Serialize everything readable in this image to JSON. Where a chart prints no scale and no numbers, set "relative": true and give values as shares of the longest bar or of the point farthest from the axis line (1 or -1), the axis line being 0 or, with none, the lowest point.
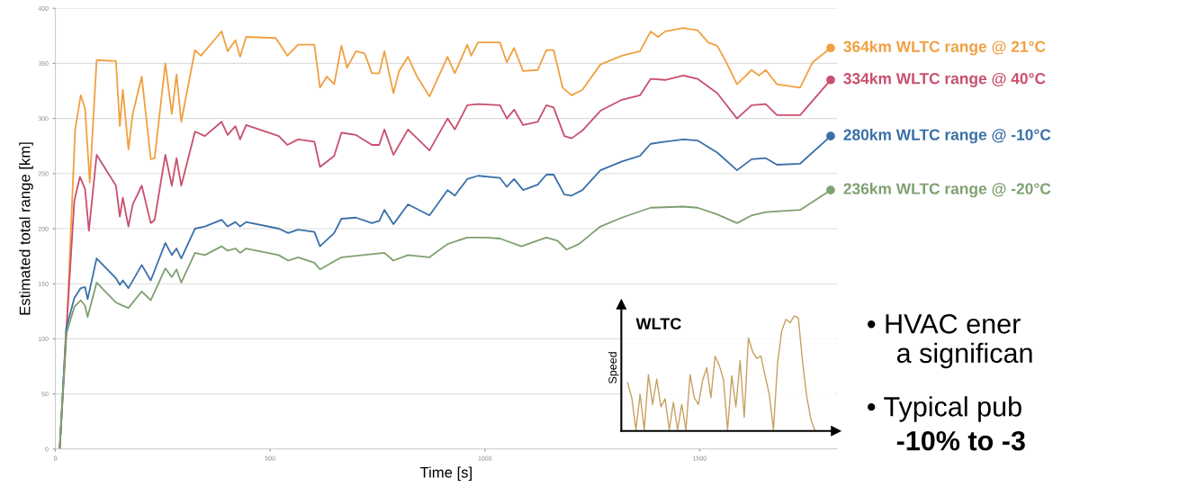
{
  "chart_data": [
    {
      "type": "line",
      "xlabel": "Time [s]",
      "ylabel": "Estimated total range [km]",
      "xlim": [
        0,
        1820
      ],
      "xticks": [
        0,
        500,
        1000,
        1500
      ],
      "ylim": [
        0,
        400
      ],
      "yticks": [
        0,
        50,
        100,
        150,
        200,
        250,
        300,
        350,
        400
      ],
      "grid": "y",
      "marker": "none",
      "line_style": "solid",
      "annotations": [
        "• HVAC ener",
        "a significan",
        "• Typical pub",
        "-10% to -3"
      ],
      "series": [
        {
          "name": "364km WLTC range @ 21°C",
          "color": "#f0a040",
          "x": [
            10,
            25,
            46,
            59,
            69,
            80,
            96,
            141,
            150,
            157,
            170,
            180,
            201,
            222,
            231,
            256,
            271,
            282,
            293,
            325,
            339,
            376,
            387,
            401,
            419,
            430,
            444,
            513,
            540,
            565,
            603,
            616,
            632,
            649,
            666,
            679,
            700,
            720,
            737,
            754,
            766,
            787,
            800,
            821,
            842,
            871,
            913,
            930,
            959,
            968,
            984,
            1035,
            1051,
            1068,
            1089,
            1123,
            1143,
            1160,
            1181,
            1202,
            1227,
            1269,
            1319,
            1361,
            1386,
            1403,
            1420,
            1462,
            1495,
            1520,
            1541,
            1562,
            1587,
            1621,
            1638,
            1654,
            1680,
            1734,
            1763,
            1805
          ],
          "values": [
            0,
            98,
            290,
            321,
            309,
            242,
            353,
            352,
            293,
            326,
            272,
            304,
            338,
            263,
            264,
            350,
            304,
            340,
            297,
            362,
            357,
            374,
            379,
            361,
            371,
            356,
            374,
            373,
            357,
            367,
            367,
            328,
            338,
            331,
            366,
            346,
            361,
            359,
            341,
            341,
            361,
            323,
            343,
            356,
            338,
            320,
            356,
            341,
            367,
            357,
            369,
            369,
            351,
            364,
            343,
            344,
            362,
            362,
            328,
            321,
            326,
            349,
            357,
            361,
            379,
            374,
            379,
            382,
            380,
            369,
            366,
            351,
            331,
            344,
            339,
            344,
            331,
            328,
            351,
            364
          ]
        },
        {
          "name": "334km WLTC range @ 40°C",
          "color": "#c8506e",
          "x": [
            10,
            25,
            44,
            57,
            69,
            78,
            96,
            141,
            150,
            157,
            170,
            180,
            201,
            222,
            231,
            256,
            271,
            282,
            293,
            325,
            348,
            387,
            401,
            419,
            430,
            444,
            520,
            540,
            565,
            603,
            616,
            649,
            666,
            700,
            737,
            754,
            766,
            787,
            821,
            871,
            913,
            930,
            959,
            984,
            1035,
            1051,
            1068,
            1089,
            1123,
            1143,
            1160,
            1185,
            1202,
            1227,
            1269,
            1319,
            1361,
            1386,
            1420,
            1462,
            1495,
            1541,
            1587,
            1621,
            1654,
            1680,
            1734,
            1805
          ],
          "values": [
            0,
            104,
            225,
            247,
            236,
            198,
            267,
            239,
            211,
            228,
            202,
            222,
            239,
            205,
            208,
            267,
            239,
            264,
            239,
            288,
            284,
            297,
            285,
            293,
            281,
            294,
            284,
            276,
            281,
            279,
            256,
            266,
            287,
            285,
            276,
            276,
            290,
            267,
            290,
            271,
            300,
            290,
            312,
            313,
            312,
            300,
            308,
            294,
            297,
            312,
            310,
            284,
            282,
            289,
            307,
            317,
            321,
            336,
            335,
            339,
            336,
            323,
            300,
            312,
            313,
            303,
            303,
            335
          ]
        },
        {
          "name": "280km WLTC range @ -10°C",
          "color": "#3a70a8",
          "x": [
            10,
            25,
            44,
            59,
            69,
            75,
            96,
            141,
            150,
            157,
            170,
            201,
            222,
            256,
            271,
            282,
            293,
            325,
            348,
            387,
            401,
            419,
            430,
            444,
            520,
            542,
            565,
            603,
            616,
            649,
            666,
            700,
            737,
            754,
            766,
            787,
            821,
            871,
            913,
            930,
            959,
            984,
            1035,
            1051,
            1068,
            1089,
            1123,
            1143,
            1160,
            1185,
            1202,
            1227,
            1269,
            1319,
            1361,
            1386,
            1420,
            1462,
            1495,
            1541,
            1587,
            1621,
            1654,
            1680,
            1734,
            1805
          ],
          "values": [
            0,
            109,
            137,
            146,
            147,
            136,
            173,
            155,
            149,
            153,
            146,
            167,
            153,
            187,
            176,
            182,
            173,
            200,
            202,
            208,
            202,
            206,
            202,
            206,
            200,
            196,
            199,
            197,
            184,
            196,
            209,
            210,
            205,
            207,
            217,
            204,
            222,
            212,
            235,
            230,
            245,
            248,
            246,
            238,
            245,
            235,
            240,
            249,
            249,
            231,
            230,
            235,
            253,
            261,
            266,
            277,
            279,
            281,
            280,
            269,
            253,
            263,
            264,
            258,
            259,
            284
          ]
        },
        {
          "name": "236km WLTC range @ -20°C",
          "color": "#7fa070",
          "x": [
            10,
            25,
            44,
            59,
            69,
            75,
            96,
            141,
            157,
            170,
            201,
            222,
            256,
            271,
            282,
            293,
            325,
            348,
            387,
            401,
            419,
            430,
            444,
            520,
            542,
            565,
            603,
            616,
            666,
            716,
            766,
            787,
            821,
            871,
            913,
            959,
            1001,
            1035,
            1085,
            1143,
            1169,
            1190,
            1219,
            1269,
            1319,
            1386,
            1462,
            1495,
            1541,
            1587,
            1621,
            1654,
            1734,
            1805
          ],
          "values": [
            0,
            104,
            129,
            135,
            130,
            120,
            151,
            133,
            130,
            128,
            143,
            135,
            164,
            156,
            163,
            151,
            178,
            176,
            184,
            180,
            182,
            178,
            182,
            176,
            171,
            174,
            169,
            163,
            174,
            176,
            178,
            171,
            176,
            174,
            186,
            192,
            192,
            191,
            184,
            192,
            189,
            181,
            186,
            202,
            210,
            219,
            220,
            219,
            213,
            205,
            212,
            215,
            217,
            235
          ]
        }
      ]
    },
    {
      "type": "line",
      "relative": true,
      "title": "WLTC",
      "ylabel": "Speed",
      "categories": [
        null,
        null,
        null,
        null,
        null,
        null,
        null,
        null,
        null,
        null,
        null,
        null,
        null,
        null,
        null,
        null,
        null,
        null,
        null,
        null,
        null,
        null,
        null,
        null,
        null,
        null,
        null,
        null,
        null,
        null,
        null,
        null,
        null,
        null,
        null,
        null,
        null,
        null,
        null,
        null,
        null,
        null,
        null,
        null,
        null,
        null
      ],
      "series": [
        {
          "color": "#c8a060",
          "values": [
            0.42,
            0.29,
            0.01,
            0.32,
            0.01,
            0.49,
            0.23,
            0.45,
            0.21,
            0.28,
            0.01,
            0.25,
            0.01,
            0.23,
            0.01,
            0.49,
            0.29,
            0.23,
            0.44,
            0.55,
            0.29,
            0.65,
            0.57,
            0.45,
            0.01,
            0.48,
            0.21,
            0.61,
            0.12,
            0.81,
            0.69,
            0.63,
            0.65,
            0.48,
            0.32,
            0.01,
            0.59,
            0.87,
            0.97,
            0.94,
            1.0,
            0.98,
            0.6,
            0.3,
            0.1,
            0.0
          ]
        }
      ]
    }
  ]
}
